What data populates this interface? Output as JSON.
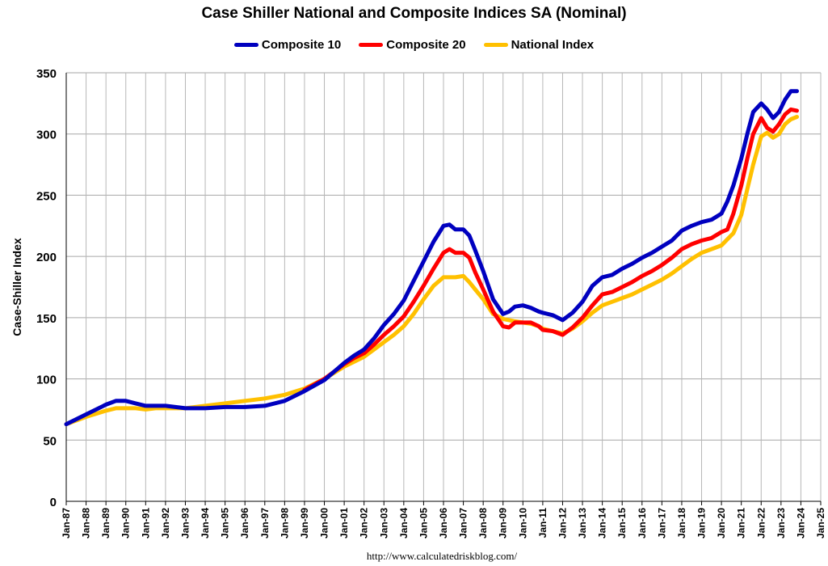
{
  "chart_data": {
    "type": "line",
    "title": "Case Shiller National and Composite Indices SA (Nominal)",
    "ylabel": "Case-Shiller Index",
    "xlabel": "",
    "source": "http://www.calculatedriskblog.com/",
    "ylim": [
      0,
      350
    ],
    "yticks": [
      0,
      50,
      100,
      150,
      200,
      250,
      300,
      350
    ],
    "xlim": [
      1987,
      2025
    ],
    "xtick_labels": [
      "Jan-87",
      "Jan-88",
      "Jan-89",
      "Jan-90",
      "Jan-91",
      "Jan-92",
      "Jan-93",
      "Jan-94",
      "Jan-95",
      "Jan-96",
      "Jan-97",
      "Jan-98",
      "Jan-99",
      "Jan-00",
      "Jan-01",
      "Jan-02",
      "Jan-03",
      "Jan-04",
      "Jan-05",
      "Jan-06",
      "Jan-07",
      "Jan-08",
      "Jan-09",
      "Jan-10",
      "Jan-11",
      "Jan-12",
      "Jan-13",
      "Jan-14",
      "Jan-15",
      "Jan-16",
      "Jan-17",
      "Jan-18",
      "Jan-19",
      "Jan-20",
      "Jan-21",
      "Jan-22",
      "Jan-23",
      "Jan-24",
      "Jan-25"
    ],
    "grid": true,
    "legend_position": "top",
    "series": [
      {
        "name": "Composite 10",
        "color": "#0000BF",
        "x": [
          1987.0,
          1988.0,
          1989.0,
          1989.5,
          1990.0,
          1990.5,
          1991.0,
          1991.5,
          1992.0,
          1993.0,
          1994.0,
          1995.0,
          1996.0,
          1997.0,
          1998.0,
          1999.0,
          2000.0,
          2001.0,
          2001.5,
          2002.0,
          2002.5,
          2003.0,
          2003.5,
          2004.0,
          2004.5,
          2005.0,
          2005.5,
          2006.0,
          2006.3,
          2006.6,
          2007.0,
          2007.3,
          2007.6,
          2008.0,
          2008.5,
          2009.0,
          2009.3,
          2009.6,
          2010.0,
          2010.4,
          2010.8,
          2011.0,
          2011.5,
          2012.0,
          2012.5,
          2013.0,
          2013.5,
          2014.0,
          2014.5,
          2015.0,
          2015.5,
          2016.0,
          2016.5,
          2017.0,
          2017.5,
          2018.0,
          2018.5,
          2019.0,
          2019.5,
          2020.0,
          2020.3,
          2020.6,
          2021.0,
          2021.3,
          2021.6,
          2022.0,
          2022.3,
          2022.6,
          2022.9,
          2023.2,
          2023.5,
          2023.8
        ],
        "values": [
          63,
          71,
          79,
          82,
          82,
          80,
          78,
          78,
          78,
          76,
          76,
          77,
          77,
          78,
          82,
          90,
          99,
          113,
          119,
          124,
          133,
          144,
          153,
          164,
          180,
          196,
          212,
          225,
          226,
          222,
          222,
          217,
          205,
          188,
          165,
          153,
          155,
          159,
          160,
          158,
          155,
          154,
          152,
          148,
          154,
          163,
          176,
          183,
          185,
          190,
          194,
          199,
          203,
          208,
          213,
          221,
          225,
          228,
          230,
          235,
          245,
          258,
          280,
          300,
          318,
          325,
          320,
          313,
          318,
          328,
          335,
          335
        ]
      },
      {
        "name": "Composite 20",
        "color": "#FF0000",
        "x": [
          1999.0,
          2000.0,
          2001.0,
          2001.5,
          2002.0,
          2002.5,
          2003.0,
          2003.5,
          2004.0,
          2004.5,
          2005.0,
          2005.5,
          2006.0,
          2006.3,
          2006.6,
          2007.0,
          2007.3,
          2007.6,
          2008.0,
          2008.5,
          2009.0,
          2009.3,
          2009.6,
          2010.0,
          2010.4,
          2010.8,
          2011.0,
          2011.5,
          2012.0,
          2012.5,
          2013.0,
          2013.5,
          2014.0,
          2014.5,
          2015.0,
          2015.5,
          2016.0,
          2016.5,
          2017.0,
          2017.5,
          2018.0,
          2018.5,
          2019.0,
          2019.5,
          2020.0,
          2020.3,
          2020.6,
          2021.0,
          2021.3,
          2021.6,
          2022.0,
          2022.3,
          2022.6,
          2022.9,
          2023.2,
          2023.5,
          2023.8
        ],
        "values": [
          91,
          100,
          112,
          117,
          121,
          128,
          136,
          143,
          151,
          163,
          176,
          190,
          203,
          206,
          203,
          203,
          199,
          187,
          173,
          155,
          143,
          142,
          146,
          146,
          146,
          143,
          140,
          139,
          136,
          142,
          150,
          160,
          169,
          171,
          175,
          179,
          184,
          188,
          193,
          199,
          206,
          210,
          213,
          215,
          220,
          222,
          235,
          258,
          280,
          300,
          313,
          305,
          302,
          308,
          316,
          320,
          319
        ]
      },
      {
        "name": "National Index",
        "color": "#FFC000",
        "x": [
          1987.0,
          1988.0,
          1989.0,
          1989.5,
          1990.0,
          1990.5,
          1991.0,
          1991.5,
          1992.0,
          1993.0,
          1994.0,
          1995.0,
          1996.0,
          1997.0,
          1998.0,
          1999.0,
          2000.0,
          2001.0,
          2001.5,
          2002.0,
          2002.5,
          2003.0,
          2003.5,
          2004.0,
          2004.5,
          2005.0,
          2005.5,
          2006.0,
          2006.3,
          2006.6,
          2007.0,
          2007.3,
          2007.6,
          2008.0,
          2008.5,
          2009.0,
          2009.3,
          2009.6,
          2010.0,
          2010.4,
          2010.8,
          2011.0,
          2011.5,
          2012.0,
          2012.5,
          2013.0,
          2013.5,
          2014.0,
          2014.5,
          2015.0,
          2015.5,
          2016.0,
          2016.5,
          2017.0,
          2017.5,
          2018.0,
          2018.5,
          2019.0,
          2019.5,
          2020.0,
          2020.3,
          2020.6,
          2021.0,
          2021.3,
          2021.6,
          2022.0,
          2022.3,
          2022.6,
          2022.9,
          2023.2,
          2023.5,
          2023.8
        ],
        "values": [
          63,
          69,
          74,
          76,
          76,
          76,
          75,
          76,
          76,
          76,
          78,
          80,
          82,
          84,
          87,
          92,
          100,
          110,
          114,
          118,
          124,
          130,
          136,
          143,
          153,
          165,
          176,
          183,
          183,
          183,
          184,
          179,
          173,
          165,
          153,
          149,
          148,
          147,
          146,
          145,
          143,
          141,
          139,
          137,
          141,
          147,
          154,
          160,
          163,
          166,
          169,
          173,
          177,
          181,
          186,
          192,
          198,
          203,
          206,
          209,
          214,
          219,
          234,
          255,
          275,
          298,
          301,
          297,
          300,
          308,
          312,
          314
        ]
      }
    ]
  }
}
